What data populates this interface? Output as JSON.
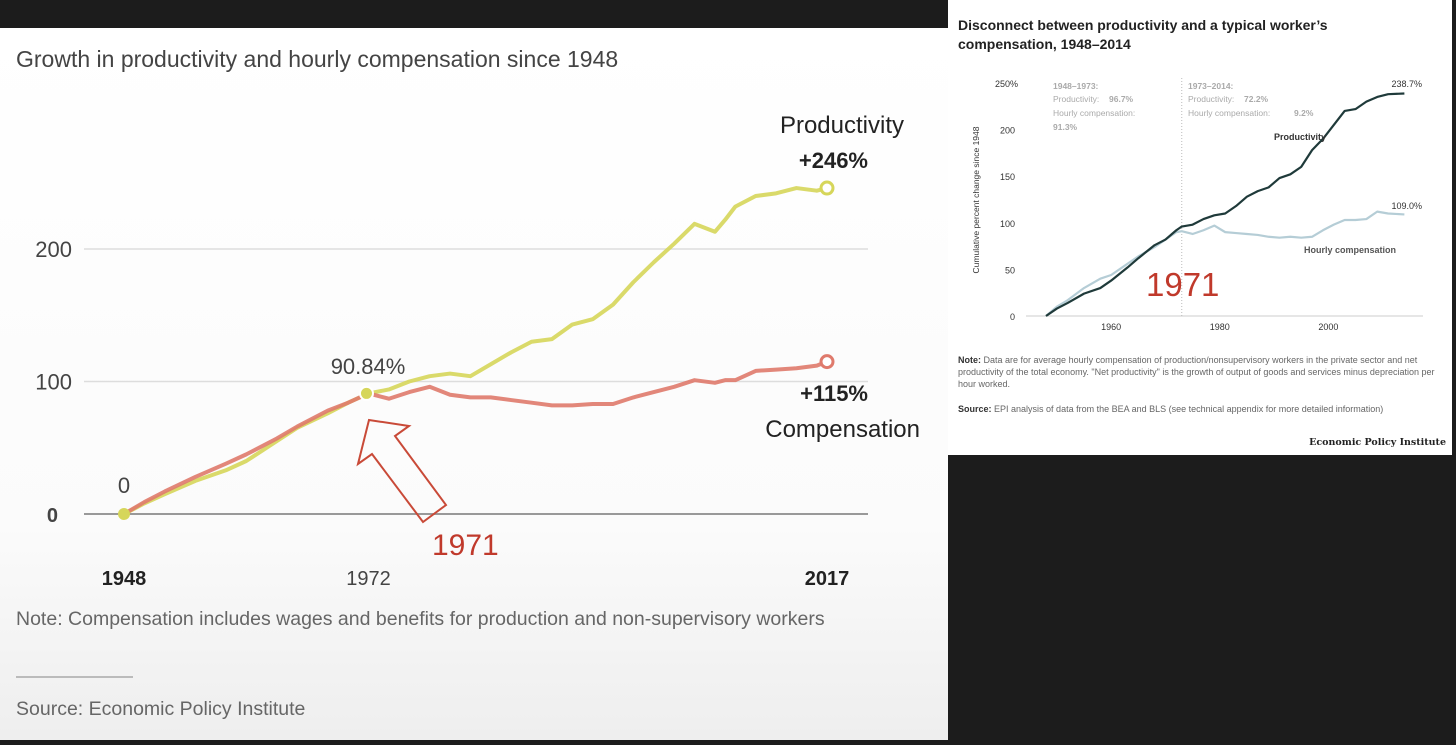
{
  "chart_data": [
    {
      "type": "line",
      "title": "Growth in productivity and hourly compensation since 1948",
      "xlabel": "",
      "ylabel": "",
      "xlim": [
        1948,
        2017
      ],
      "ylim": [
        0,
        250
      ],
      "x_ticks": [
        "1948",
        "1972",
        "2017"
      ],
      "y_ticks": [
        "0",
        "100",
        "200"
      ],
      "grid": true,
      "series": [
        {
          "name": "Productivity",
          "color": "#d6d65a",
          "x": [
            1948,
            1950,
            1952,
            1955,
            1958,
            1960,
            1963,
            1965,
            1968,
            1970,
            1972,
            1974,
            1976,
            1978,
            1980,
            1982,
            1984,
            1986,
            1988,
            1990,
            1992,
            1994,
            1996,
            1998,
            2000,
            2002,
            2004,
            2006,
            2007,
            2008,
            2010,
            2012,
            2014,
            2016,
            2017
          ],
          "values": [
            0,
            8,
            15,
            25,
            33,
            40,
            55,
            65,
            76,
            84,
            91,
            94,
            100,
            104,
            106,
            104,
            113,
            122,
            130,
            132,
            143,
            147,
            158,
            175,
            190,
            204,
            219,
            213,
            222,
            232,
            240,
            242,
            246,
            244,
            246
          ]
        },
        {
          "name": "Compensation",
          "color": "#df7a6c",
          "x": [
            1948,
            1950,
            1952,
            1955,
            1958,
            1960,
            1963,
            1965,
            1968,
            1970,
            1972,
            1974,
            1976,
            1978,
            1980,
            1982,
            1984,
            1986,
            1988,
            1990,
            1992,
            1994,
            1996,
            1998,
            2000,
            2002,
            2004,
            2006,
            2007,
            2008,
            2010,
            2012,
            2014,
            2016,
            2017
          ],
          "values": [
            0,
            9,
            17,
            28,
            38,
            45,
            57,
            66,
            78,
            84,
            91,
            87,
            92,
            96,
            90,
            88,
            88,
            86,
            84,
            82,
            82,
            83,
            83,
            88,
            92,
            96,
            101,
            99,
            101,
            101,
            108,
            109,
            110,
            112,
            115
          ]
        }
      ],
      "annotations": {
        "start_label": "0",
        "midpoint_label": "90.84%",
        "productivity_name": "Productivity",
        "productivity_change": "+246%",
        "compensation_change": "+115%",
        "compensation_name": "Compensation",
        "arrow_label": "1971"
      },
      "note": "Note: Compensation includes wages and benefits for production and non-supervisory workers",
      "source": "Source: Economic Policy Institute"
    },
    {
      "type": "line",
      "title": "Disconnect between productivity and a typical worker’s compensation, 1948–2014",
      "xlabel": "",
      "ylabel": "Cumulative percent change since 1948",
      "xlim": [
        1948,
        2014
      ],
      "ylim": [
        0,
        250
      ],
      "x_ticks": [
        "1960",
        "1980",
        "2000"
      ],
      "y_ticks": [
        "0",
        "50",
        "100",
        "150",
        "200",
        "250%"
      ],
      "divider_year": 1973,
      "series": [
        {
          "name": "Productivity",
          "color": "#1f3a3a",
          "x": [
            1948,
            1950,
            1952,
            1955,
            1958,
            1960,
            1963,
            1965,
            1968,
            1970,
            1972,
            1973,
            1975,
            1977,
            1979,
            1981,
            1983,
            1985,
            1987,
            1989,
            1991,
            1993,
            1995,
            1997,
            1999,
            2001,
            2003,
            2005,
            2007,
            2009,
            2011,
            2014
          ],
          "values": [
            0,
            8,
            14,
            24,
            30,
            38,
            52,
            62,
            76,
            82,
            92,
            96,
            98,
            104,
            108,
            110,
            118,
            128,
            134,
            138,
            148,
            152,
            160,
            178,
            190,
            205,
            220,
            222,
            230,
            235,
            238,
            238.7
          ]
        },
        {
          "name": "Hourly compensation",
          "color": "#b5cdd6",
          "x": [
            1948,
            1950,
            1952,
            1955,
            1958,
            1960,
            1963,
            1965,
            1968,
            1970,
            1972,
            1973,
            1975,
            1977,
            1979,
            1981,
            1983,
            1985,
            1987,
            1989,
            1991,
            1993,
            1995,
            1997,
            1999,
            2001,
            2003,
            2005,
            2007,
            2009,
            2011,
            2014
          ],
          "values": [
            0,
            10,
            17,
            30,
            40,
            44,
            56,
            64,
            74,
            82,
            90,
            91,
            88,
            92,
            97,
            90,
            89,
            88,
            87,
            85,
            84,
            85,
            84,
            85,
            92,
            98,
            103,
            103,
            104,
            112,
            110,
            109
          ]
        }
      ],
      "annotations": {
        "period1_header": "1948–1973:",
        "period1_prod_label": "Productivity:",
        "period1_prod_value": "96.7%",
        "period1_comp_label": "Hourly compensation:",
        "period1_comp_value": "91.3%",
        "period2_header": "1973–2014:",
        "period2_prod_label": "Productivity:",
        "period2_prod_value": "72.2%",
        "period2_comp_label": "Hourly compensation:",
        "period2_comp_value": "9.2%",
        "productivity_end": "238.7%",
        "compensation_end": "109.0%",
        "productivity_name": "Productivity",
        "compensation_name": "Hourly compensation",
        "overlay_year": "1971"
      },
      "note_label": "Note:",
      "note": "Data are for average hourly compensation of production/nonsupervisory workers in the private sector and net productivity of the total economy. \"Net productivity\" is the growth of output of goods and services minus depreciation per hour worked.",
      "source_label": "Source:",
      "source": "EPI analysis of data from the BEA and BLS (see technical appendix for more detailed information)",
      "brand": "Economic Policy Institute"
    }
  ]
}
